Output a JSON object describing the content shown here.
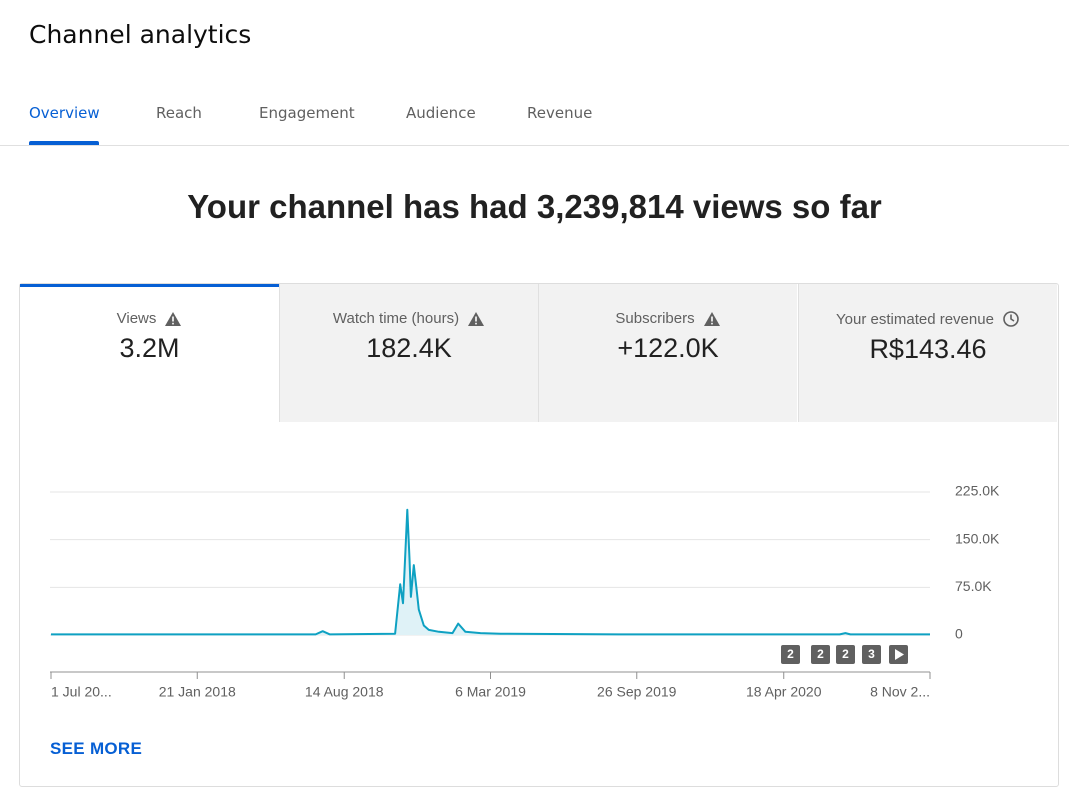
{
  "header": {
    "title": "Channel analytics"
  },
  "tabs": [
    "Overview",
    "Reach",
    "Engagement",
    "Audience",
    "Revenue"
  ],
  "headline": "Your channel has had 3,239,814 views so far",
  "metrics": [
    {
      "label": "Views",
      "value": "3.2M"
    },
    {
      "label": "Watch time (hours)",
      "value": "182.4K"
    },
    {
      "label": "Subscribers",
      "value": "+122.0K"
    },
    {
      "label": "Your estimated revenue",
      "value": "R$143.46"
    }
  ],
  "chart_data": {
    "type": "line",
    "color": "#0ea1c2",
    "fill": "#dff2f7",
    "grid": true,
    "x": [
      "2017-07-01",
      "2018-02-01",
      "2018-07-05",
      "2018-07-15",
      "2018-07-25",
      "2018-10-24",
      "2018-10-31",
      "2018-11-04",
      "2018-11-06",
      "2018-11-10",
      "2018-11-13",
      "2018-11-15",
      "2018-11-19",
      "2018-11-23",
      "2018-11-26",
      "2018-12-03",
      "2018-12-10",
      "2018-12-24",
      "2019-01-12",
      "2019-01-20",
      "2019-01-30",
      "2019-02-20",
      "2019-03-20",
      "2019-09-01",
      "2020-07-05",
      "2020-07-13",
      "2020-07-20",
      "2020-11-08"
    ],
    "values": [
      1000,
      1000,
      1000,
      6000,
      1000,
      2000,
      80000,
      50000,
      100000,
      197000,
      120000,
      60000,
      110000,
      70000,
      40000,
      15000,
      8000,
      5000,
      3000,
      18000,
      5000,
      3000,
      2000,
      1000,
      1000,
      3000,
      1000,
      1000
    ],
    "xlim": [
      "2017-07-01",
      "2020-11-08"
    ],
    "xticks": [
      {
        "value": "2017-07-01",
        "label": "1 Jul 20..."
      },
      {
        "value": "2018-01-21",
        "label": "21 Jan 2018"
      },
      {
        "value": "2018-08-14",
        "label": "14 Aug 2018"
      },
      {
        "value": "2019-03-06",
        "label": "6 Mar 2019"
      },
      {
        "value": "2019-09-26",
        "label": "26 Sep 2019"
      },
      {
        "value": "2020-04-18",
        "label": "18 Apr 2020"
      },
      {
        "value": "2020-11-08",
        "label": "8 Nov 2..."
      }
    ],
    "ylim": [
      0,
      225000
    ],
    "yticks": [
      0,
      {
        "value": 75000,
        "label": "75.0K"
      },
      {
        "value": 150000,
        "label": "150.0K"
      },
      {
        "value": 225000,
        "label": "225.0K"
      }
    ],
    "annotations": [
      "2",
      "2",
      "2",
      "3"
    ]
  },
  "link": "SEE MORE"
}
